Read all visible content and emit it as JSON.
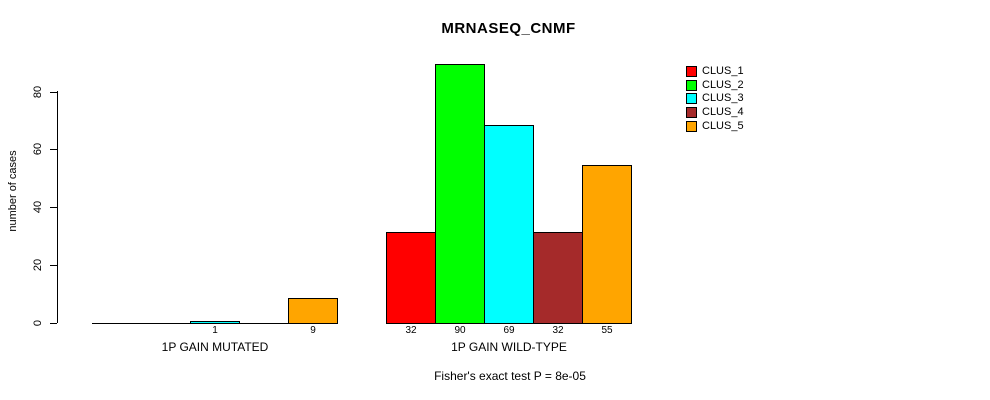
{
  "title": "MRNASEQ_CNMF",
  "footnote": "Fisher's exact test P = 8e-05",
  "chart_data": {
    "type": "bar",
    "title": "MRNASEQ_CNMF",
    "xlabel": "",
    "ylabel": "number of cases",
    "ylim": [
      0,
      90
    ],
    "yticks": [
      0,
      20,
      40,
      60,
      80
    ],
    "grid": false,
    "legend_position": "top-right",
    "categories": [
      "1P GAIN MUTATED",
      "1P GAIN WILD-TYPE"
    ],
    "series": [
      {
        "name": "CLUS_1",
        "color": "#ff0000",
        "values": [
          0,
          32
        ]
      },
      {
        "name": "CLUS_2",
        "color": "#00ff00",
        "values": [
          0,
          90
        ]
      },
      {
        "name": "CLUS_3",
        "color": "#00ffff",
        "values": [
          1,
          69
        ]
      },
      {
        "name": "CLUS_4",
        "color": "#a52a2a",
        "values": [
          0,
          32
        ]
      },
      {
        "name": "CLUS_5",
        "color": "#ffa500",
        "values": [
          9,
          55
        ]
      }
    ],
    "bar_labels_note": "each bar is labeled underneath with its value; zero-height bars are unlabeled",
    "visible_bar_labels": [
      "1",
      "9",
      "32",
      "90",
      "69",
      "32",
      "55"
    ]
  }
}
